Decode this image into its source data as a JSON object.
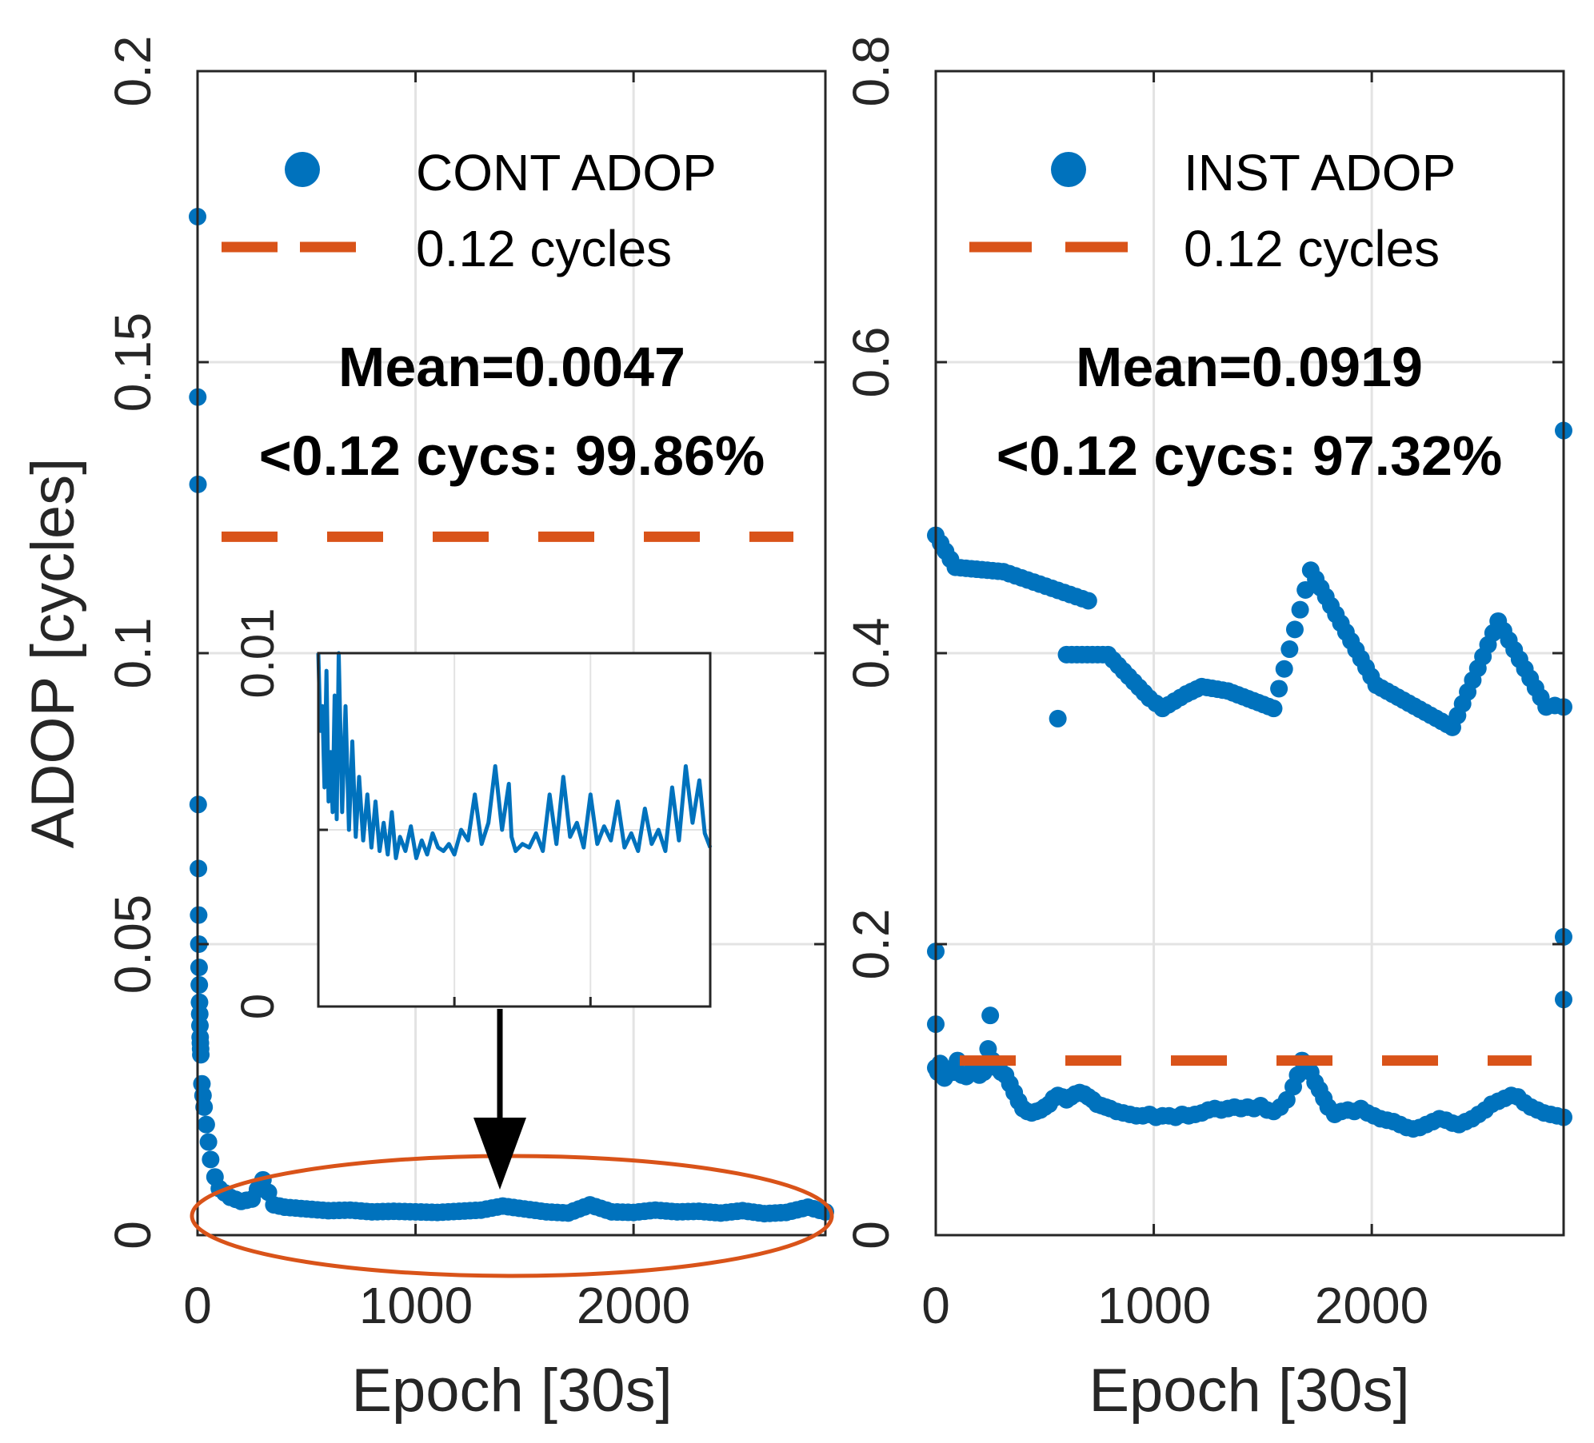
{
  "colors": {
    "series": "#0072BD",
    "threshold": "#D95319",
    "arrow": "#000000"
  },
  "chart_data": [
    {
      "type": "scatter",
      "panel": "left",
      "ylabel": "ADOP [cycles]",
      "xlabel": "Epoch [30s]",
      "xlim": [
        0,
        2880
      ],
      "ylim": [
        0,
        0.2
      ],
      "xticks": [
        "0",
        "1000",
        "2000"
      ],
      "yticks": [
        "0",
        "0.05",
        "0.1",
        "0.15",
        "0.2"
      ],
      "grid": true,
      "legend": {
        "location": "top",
        "series_label": "CONT ADOP",
        "threshold_label": "0.12 cycles"
      },
      "annotation": {
        "mean": "Mean=0.0047",
        "fraction": "<0.12 cycs: 99.86%"
      },
      "threshold": 0.12,
      "series": [
        {
          "name": "CONT ADOP",
          "x": [
            0,
            1,
            2,
            3,
            4,
            5,
            6,
            7,
            8,
            9,
            10,
            11,
            12,
            13,
            14,
            15,
            20,
            25,
            30,
            40,
            50,
            60,
            80,
            100,
            150,
            200,
            250,
            300,
            350,
            400,
            500,
            600,
            700,
            800,
            900,
            1000,
            1100,
            1200,
            1300,
            1400,
            1500,
            1600,
            1700,
            1800,
            1900,
            2000,
            2100,
            2200,
            2300,
            2400,
            2500,
            2600,
            2700,
            2800,
            2880
          ],
          "y": [
            0.175,
            0.144,
            0.129,
            0.074,
            0.063,
            0.055,
            0.05,
            0.046,
            0.043,
            0.04,
            0.038,
            0.036,
            0.034,
            0.033,
            0.032,
            0.031,
            0.026,
            0.024,
            0.022,
            0.019,
            0.016,
            0.013,
            0.01,
            0.008,
            0.0065,
            0.0058,
            0.0062,
            0.0095,
            0.0052,
            0.0048,
            0.0045,
            0.0042,
            0.0043,
            0.004,
            0.0041,
            0.004,
            0.0039,
            0.0041,
            0.0043,
            0.005,
            0.0045,
            0.004,
            0.0038,
            0.0052,
            0.004,
            0.0039,
            0.0043,
            0.004,
            0.0041,
            0.0038,
            0.0042,
            0.0037,
            0.0039,
            0.0048,
            0.004
          ]
        }
      ],
      "inset": {
        "type": "line",
        "ylim": [
          0,
          0.01
        ],
        "yticks": [
          "0",
          "0.01"
        ],
        "x": [
          0,
          15,
          30,
          45,
          60,
          75,
          90,
          105,
          120,
          135,
          150,
          175,
          200,
          225,
          250,
          275,
          300,
          330,
          360,
          390,
          420,
          450,
          480,
          510,
          540,
          570,
          600,
          640,
          680,
          720,
          760,
          800,
          840,
          880,
          920,
          960,
          1000,
          1050,
          1100,
          1150,
          1200,
          1250,
          1300,
          1350,
          1400,
          1420,
          1450,
          1500,
          1550,
          1600,
          1650,
          1700,
          1750,
          1800,
          1850,
          1900,
          1950,
          2000,
          2050,
          2100,
          2150,
          2200,
          2250,
          2300,
          2350,
          2400,
          2450,
          2500,
          2550,
          2600,
          2650,
          2700,
          2750,
          2800,
          2840,
          2880
        ],
        "y": [
          0.01,
          0.0078,
          0.0085,
          0.0062,
          0.0095,
          0.0058,
          0.0072,
          0.0055,
          0.0088,
          0.0053,
          0.01,
          0.0055,
          0.0085,
          0.005,
          0.0075,
          0.0048,
          0.0065,
          0.0047,
          0.006,
          0.0045,
          0.0058,
          0.0044,
          0.0052,
          0.0043,
          0.0055,
          0.0042,
          0.0048,
          0.0044,
          0.0051,
          0.0042,
          0.0047,
          0.0043,
          0.0049,
          0.0045,
          0.0044,
          0.0046,
          0.0043,
          0.005,
          0.0047,
          0.006,
          0.0046,
          0.0052,
          0.0068,
          0.005,
          0.0063,
          0.0048,
          0.0044,
          0.0046,
          0.0045,
          0.0049,
          0.0044,
          0.006,
          0.0046,
          0.0065,
          0.0048,
          0.0052,
          0.0045,
          0.006,
          0.0046,
          0.0051,
          0.0047,
          0.0058,
          0.0045,
          0.0049,
          0.0044,
          0.0056,
          0.0046,
          0.005,
          0.0044,
          0.0062,
          0.0047,
          0.0068,
          0.0052,
          0.0064,
          0.0049,
          0.0045
        ]
      }
    },
    {
      "type": "scatter",
      "panel": "right",
      "ylabel": "",
      "xlabel": "Epoch [30s]",
      "xlim": [
        0,
        2880
      ],
      "ylim": [
        0,
        0.8
      ],
      "xticks": [
        "0",
        "1000",
        "2000"
      ],
      "yticks": [
        "0",
        "0.2",
        "0.4",
        "0.6",
        "0.8"
      ],
      "grid": true,
      "legend": {
        "location": "top",
        "series_label": "INST ADOP",
        "threshold_label": "0.12 cycles"
      },
      "annotation": {
        "mean": "Mean=0.0919",
        "fraction": "<0.12 cycs: 97.32%"
      },
      "threshold": 0.12,
      "series": [
        {
          "name": "INST ADOP",
          "x": [
            0,
            10,
            20,
            30,
            40,
            60,
            80,
            100,
            120,
            140,
            160,
            180,
            200,
            220,
            240,
            260,
            280,
            300,
            320,
            340,
            360,
            380,
            400,
            420,
            440,
            460,
            480,
            500,
            520,
            540,
            560,
            580,
            600,
            620,
            640,
            660,
            680,
            700,
            720,
            740,
            760,
            780,
            800,
            830,
            860,
            890,
            920,
            950,
            980,
            1010,
            1040,
            1070,
            1100,
            1130,
            1160,
            1190,
            1220,
            1250,
            1280,
            1310,
            1340,
            1370,
            1400,
            1430,
            1460,
            1490,
            1520,
            1550,
            1580,
            1610,
            1640,
            1660,
            1680,
            1700,
            1720,
            1740,
            1760,
            1780,
            1800,
            1830,
            1860,
            1890,
            1920,
            1950,
            1980,
            2010,
            2040,
            2070,
            2100,
            2130,
            2160,
            2190,
            2220,
            2250,
            2280,
            2310,
            2340,
            2370,
            2400,
            2430,
            2460,
            2490,
            2520,
            2550,
            2580,
            2610,
            2640,
            2670,
            2700,
            2730,
            2760,
            2790,
            2820,
            2850,
            2880,
            0,
            0,
            0,
            90,
            310,
            700,
            560,
            600,
            790,
            980,
            1040,
            1150,
            1220,
            1340,
            1550,
            1720,
            2020,
            2370,
            2580,
            2800,
            2840,
            2880,
            2880,
            2880,
            2880,
            250
          ],
          "y": [
            0.115,
            0.112,
            0.118,
            0.11,
            0.108,
            0.114,
            0.112,
            0.12,
            0.11,
            0.109,
            0.112,
            0.113,
            0.11,
            0.112,
            0.128,
            0.12,
            0.115,
            0.112,
            0.11,
            0.104,
            0.098,
            0.092,
            0.087,
            0.085,
            0.084,
            0.085,
            0.086,
            0.088,
            0.09,
            0.094,
            0.096,
            0.095,
            0.093,
            0.095,
            0.097,
            0.098,
            0.097,
            0.095,
            0.093,
            0.09,
            0.089,
            0.088,
            0.087,
            0.085,
            0.084,
            0.083,
            0.082,
            0.082,
            0.083,
            0.081,
            0.082,
            0.082,
            0.081,
            0.083,
            0.082,
            0.083,
            0.084,
            0.086,
            0.087,
            0.086,
            0.087,
            0.088,
            0.087,
            0.088,
            0.087,
            0.089,
            0.086,
            0.085,
            0.088,
            0.093,
            0.102,
            0.11,
            0.12,
            0.118,
            0.112,
            0.105,
            0.1,
            0.094,
            0.088,
            0.083,
            0.085,
            0.086,
            0.085,
            0.087,
            0.084,
            0.082,
            0.08,
            0.079,
            0.078,
            0.076,
            0.074,
            0.073,
            0.074,
            0.076,
            0.078,
            0.08,
            0.079,
            0.077,
            0.076,
            0.078,
            0.08,
            0.083,
            0.086,
            0.09,
            0.092,
            0.094,
            0.096,
            0.095,
            0.091,
            0.088,
            0.086,
            0.084,
            0.083,
            0.082,
            0.081,
            0.195,
            0.145,
            0.481,
            0.459,
            0.456,
            0.436,
            0.355,
            0.399,
            0.399,
            0.369,
            0.362,
            0.372,
            0.377,
            0.374,
            0.362,
            0.457,
            0.378,
            0.349,
            0.422,
            0.363,
            0.364,
            0.553,
            0.205,
            0.162,
            0.363,
            0.151
          ]
        }
      ]
    }
  ]
}
